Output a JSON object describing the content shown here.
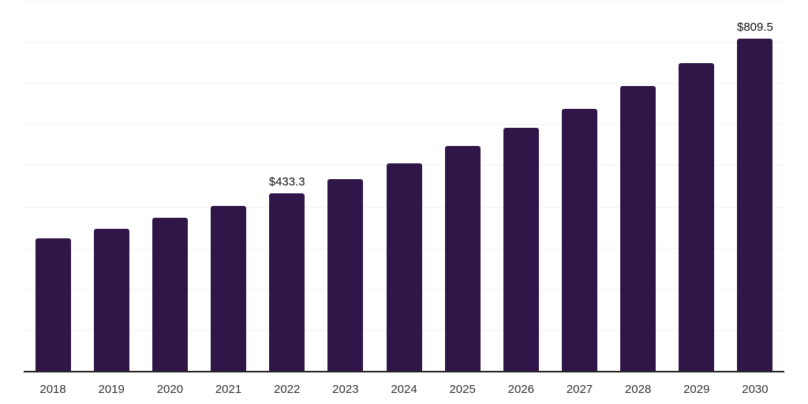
{
  "chart_data": {
    "type": "bar",
    "title": "",
    "categories": [
      "2018",
      "2019",
      "2020",
      "2021",
      "2022",
      "2023",
      "2024",
      "2025",
      "2026",
      "2027",
      "2028",
      "2029",
      "2030"
    ],
    "values": [
      324,
      347,
      374,
      403,
      433.3,
      469,
      506,
      548,
      593,
      639,
      695,
      750,
      809.5
    ],
    "data_labels": [
      {
        "category": "2022",
        "text": "$433.3"
      },
      {
        "category": "2030",
        "text": "$809.5"
      }
    ],
    "xlabel": "",
    "ylabel": "",
    "ylim": [
      0,
      900
    ],
    "grid_step": 100,
    "grid": "horizontal-only",
    "y_axis_labels": "hidden",
    "legend": "none",
    "colors": {
      "bar": "#2F1548",
      "gridline": "#F2F2F2",
      "axis_line": "#262626",
      "tick_label": "#333333",
      "data_label": "#111111",
      "background": "#FFFFFF"
    }
  }
}
